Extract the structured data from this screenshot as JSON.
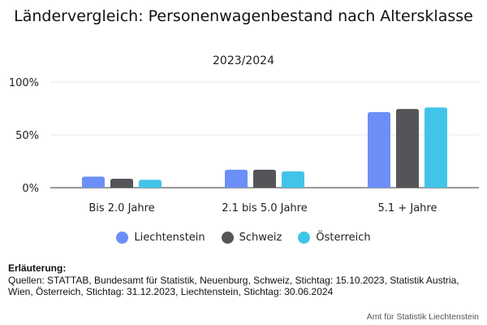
{
  "chart_data": {
    "type": "bar",
    "title": "Ländervergleich: Personenwagenbestand nach Altersklasse",
    "subtitle": "2023/2024",
    "xlabel": "",
    "ylabel": "",
    "categories": [
      "Bis 2.0 Jahre",
      "2.1 bis 5.0 Jahre",
      "5.1 + Jahre"
    ],
    "series": [
      {
        "name": "Liechtenstein",
        "color": "#6b8ff7",
        "values": [
          10.5,
          17,
          71.5
        ]
      },
      {
        "name": "Schweiz",
        "color": "#555559",
        "values": [
          8.5,
          17,
          74.5
        ]
      },
      {
        "name": "Österreich",
        "color": "#42c4ea",
        "values": [
          7.5,
          15.5,
          76
        ]
      }
    ],
    "yticks": [
      "0%",
      "50%",
      "100%"
    ],
    "ylim": [
      0,
      100
    ],
    "grid": true,
    "legend_position": "bottom"
  },
  "notes": {
    "heading": "Erläuterung:",
    "text": "Quellen: STATTAB, Bundesamt für Statistik, Neuenburg, Schweiz, Stichtag: 15.10.2023, Statistik Austria, Wien, Österreich, Stichtag: 31.12.2023, Liechtenstein, Stichtag: 30.06.2024"
  },
  "credit": "Amt für Statistik Liechtenstein"
}
